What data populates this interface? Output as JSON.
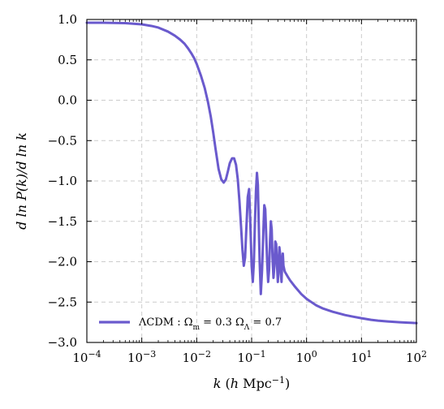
{
  "colors": {
    "series": "#6a5acd",
    "grid": "#cccccc",
    "axes": "#000000",
    "background": "#ffffff"
  },
  "chart_data": {
    "type": "line",
    "xscale": "log",
    "xlabel": "k (h Mpc⁻¹)",
    "ylabel": "d ln P(k)/d ln k",
    "xlim": [
      0.0001,
      100
    ],
    "ylim": [
      -3.0,
      1.0
    ],
    "grid": true,
    "legend_position": "lower-left",
    "x_ticks": [
      {
        "value": 0.0001,
        "base": "10",
        "exp": "−4"
      },
      {
        "value": 0.001,
        "base": "10",
        "exp": "−3"
      },
      {
        "value": 0.01,
        "base": "10",
        "exp": "−2"
      },
      {
        "value": 0.1,
        "base": "10",
        "exp": "−1"
      },
      {
        "value": 1,
        "base": "10",
        "exp": "0"
      },
      {
        "value": 10,
        "base": "10",
        "exp": "1"
      },
      {
        "value": 100,
        "base": "10",
        "exp": "2"
      }
    ],
    "y_ticks": [
      {
        "value": 1.0,
        "label": "1.0"
      },
      {
        "value": 0.5,
        "label": "0.5"
      },
      {
        "value": 0.0,
        "label": "0.0"
      },
      {
        "value": -0.5,
        "label": "−0.5"
      },
      {
        "value": -1.0,
        "label": "−1.0"
      },
      {
        "value": -1.5,
        "label": "−1.5"
      },
      {
        "value": -2.0,
        "label": "−2.0"
      },
      {
        "value": -2.5,
        "label": "−2.5"
      },
      {
        "value": -3.0,
        "label": "−3.0"
      }
    ],
    "series": [
      {
        "name": "ΛCDM :  Ωm = 0.3 ΩΛ = 0.7",
        "x": [
          0.0001,
          0.0002,
          0.0005,
          0.001,
          0.0015,
          0.002,
          0.003,
          0.004,
          0.005,
          0.006,
          0.007,
          0.008,
          0.009,
          0.01,
          0.012,
          0.014,
          0.016,
          0.018,
          0.02,
          0.022,
          0.025,
          0.028,
          0.031,
          0.034,
          0.037,
          0.04,
          0.044,
          0.048,
          0.052,
          0.056,
          0.06,
          0.064,
          0.068,
          0.072,
          0.076,
          0.08,
          0.085,
          0.09,
          0.095,
          0.1,
          0.105,
          0.11,
          0.115,
          0.12,
          0.125,
          0.13,
          0.135,
          0.14,
          0.147,
          0.155,
          0.163,
          0.17,
          0.177,
          0.185,
          0.193,
          0.2,
          0.208,
          0.216,
          0.224,
          0.232,
          0.24,
          0.25,
          0.26,
          0.27,
          0.28,
          0.29,
          0.3,
          0.31,
          0.32,
          0.33,
          0.34,
          0.35,
          0.36,
          0.37,
          0.38,
          0.4,
          0.45,
          0.5,
          0.6,
          0.8,
          1,
          1.5,
          2,
          3,
          5,
          7,
          10,
          15,
          20,
          30,
          50,
          70,
          100
        ],
        "y": [
          0.96,
          0.96,
          0.955,
          0.94,
          0.92,
          0.9,
          0.85,
          0.8,
          0.75,
          0.7,
          0.64,
          0.58,
          0.52,
          0.45,
          0.3,
          0.15,
          -0.02,
          -0.2,
          -0.4,
          -0.6,
          -0.85,
          -0.98,
          -1.02,
          -0.98,
          -0.88,
          -0.78,
          -0.72,
          -0.72,
          -0.8,
          -0.98,
          -1.25,
          -1.55,
          -1.85,
          -2.05,
          -1.95,
          -1.6,
          -1.2,
          -1.1,
          -1.55,
          -2.05,
          -2.25,
          -2.0,
          -1.5,
          -1.12,
          -0.9,
          -1.05,
          -1.55,
          -2.0,
          -2.4,
          -2.1,
          -1.65,
          -1.3,
          -1.35,
          -1.7,
          -2.05,
          -2.25,
          -2.1,
          -1.75,
          -1.5,
          -1.6,
          -1.95,
          -2.2,
          -2.05,
          -1.75,
          -1.78,
          -2.05,
          -2.25,
          -2.05,
          -1.82,
          -1.9,
          -2.15,
          -2.25,
          -2.0,
          -1.9,
          -2.05,
          -2.12,
          -2.18,
          -2.23,
          -2.3,
          -2.4,
          -2.46,
          -2.54,
          -2.58,
          -2.62,
          -2.66,
          -2.68,
          -2.7,
          -2.72,
          -2.73,
          -2.74,
          -2.75,
          -2.755,
          -2.76
        ]
      }
    ]
  },
  "legend": {
    "label_main": "ΛCDM :  Ω",
    "label_sub1": "m",
    "label_mid": " = 0.3 Ω",
    "label_sub2": "Λ",
    "label_end": " = 0.7"
  },
  "axis_titles": {
    "x_k": "k",
    "x_open": " (",
    "x_h": "h",
    "x_unit": " Mpc",
    "x_exp": "−1",
    "x_close": ")",
    "y_text": "d ln P(k)/d ln k"
  }
}
